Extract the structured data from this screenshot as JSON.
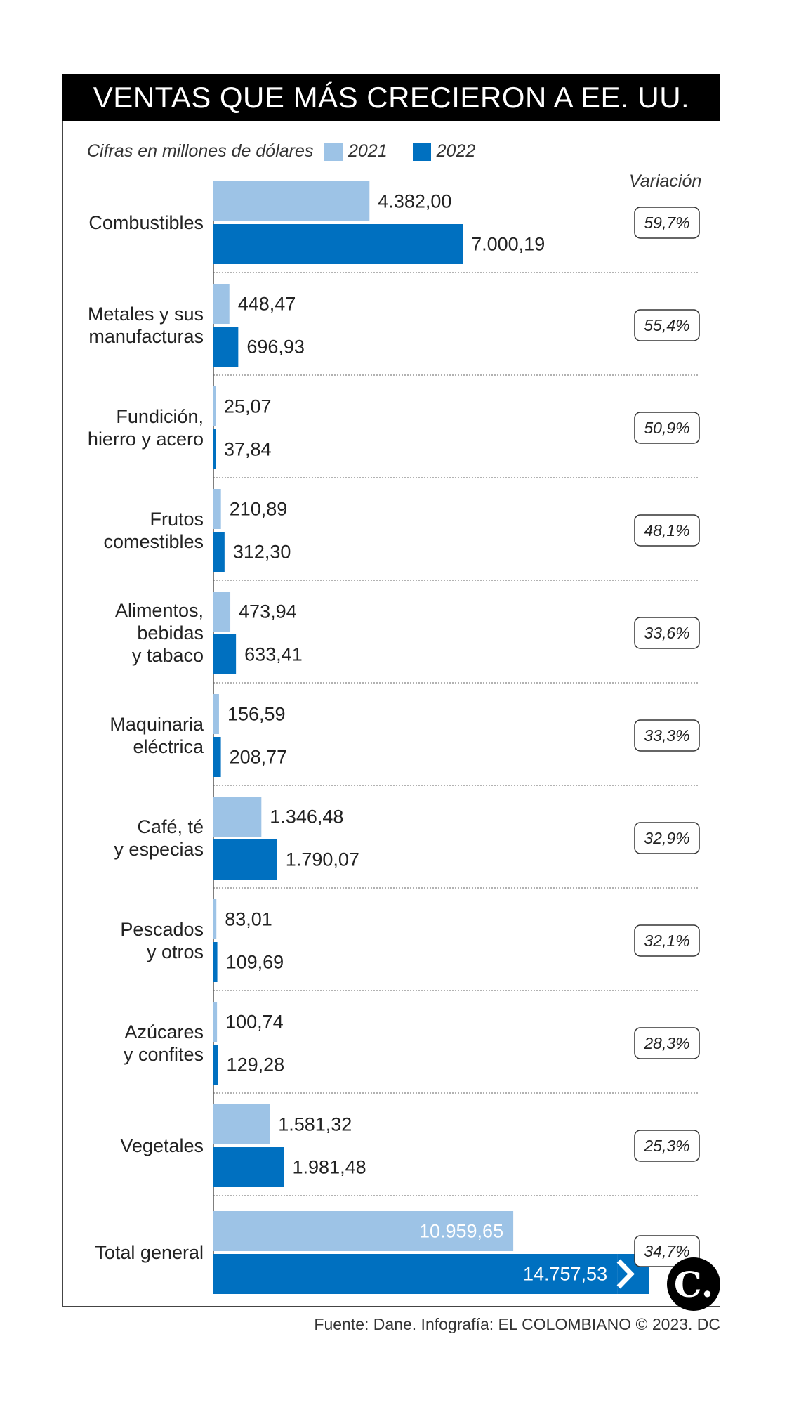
{
  "title": "VENTAS QUE MÁS CRECIERON A EE. UU.",
  "units_note": "Cifras en millones de dólares",
  "variation_header": "Variación",
  "footer": "Fuente: Dane. Infografía: EL COLOMBIANO © 2023. DC",
  "logo_text": "C.",
  "colors": {
    "2021": "#9dc3e6",
    "2022": "#0070c0",
    "title_bg": "#000000"
  },
  "chart_data": {
    "type": "bar",
    "orientation": "horizontal",
    "categories": [
      "Combustibles",
      "Metales y sus manufacturas",
      "Fundición, hierro y acero",
      "Frutos comestibles",
      "Alimentos, bebidas y tabaco",
      "Maquinaria eléctrica",
      "Café, té y especias",
      "Pescados y otros",
      "Azúcares y confites",
      "Vegetales",
      "Total general"
    ],
    "category_lines": [
      [
        "Combustibles"
      ],
      [
        "Metales y sus",
        "manufacturas"
      ],
      [
        "Fundición,",
        "hierro y acero"
      ],
      [
        "Frutos",
        "comestibles"
      ],
      [
        "Alimentos,",
        "bebidas",
        "y tabaco"
      ],
      [
        "Maquinaria",
        "eléctrica"
      ],
      [
        "Café, té",
        "y especias"
      ],
      [
        "Pescados",
        "y otros"
      ],
      [
        "Azúcares",
        "y confites"
      ],
      [
        "Vegetales"
      ],
      [
        "Total general"
      ]
    ],
    "series": [
      {
        "name": "2021",
        "values": [
          4382.0,
          448.47,
          25.07,
          210.89,
          473.94,
          156.59,
          1346.48,
          83.01,
          100.74,
          1581.32,
          10959.65
        ],
        "labels": [
          "4.382,00",
          "448,47",
          "25,07",
          "210,89",
          "473,94",
          "156,59",
          "1.346,48",
          "83,01",
          "100,74",
          "1.581,32",
          "10.959,65"
        ]
      },
      {
        "name": "2022",
        "values": [
          7000.19,
          696.93,
          37.84,
          312.3,
          633.41,
          208.77,
          1790.07,
          109.69,
          129.28,
          1981.48,
          14757.53
        ],
        "labels": [
          "7.000,19",
          "696,93",
          "37,84",
          "312,30",
          "633,41",
          "208,77",
          "1.790,07",
          "109,69",
          "129,28",
          "1.981,48",
          "14.757,53"
        ]
      }
    ],
    "variation": [
      "59,7%",
      "55,4%",
      "50,9%",
      "48,1%",
      "33,6%",
      "33,3%",
      "32,9%",
      "32,1%",
      "28,3%",
      "25,3%",
      "34,7%"
    ],
    "legend_position": "top",
    "grid": false
  }
}
